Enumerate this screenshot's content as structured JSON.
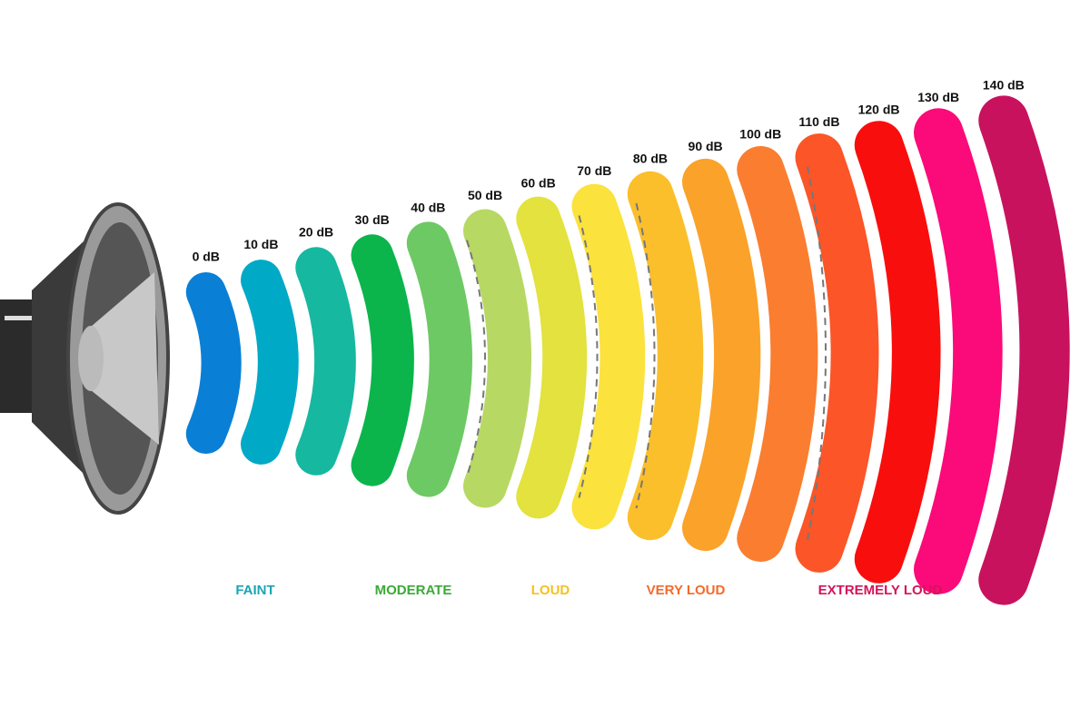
{
  "levels": [
    {
      "label": "0 dB",
      "color": "#0a7fd6"
    },
    {
      "label": "10 dB",
      "color": "#00a9c6"
    },
    {
      "label": "20 dB",
      "color": "#16b8a0"
    },
    {
      "label": "30 dB",
      "color": "#0bb54c"
    },
    {
      "label": "40 dB",
      "color": "#6dc964"
    },
    {
      "label": "50 dB",
      "color": "#b7d863"
    },
    {
      "label": "60 dB",
      "color": "#e3e23e"
    },
    {
      "label": "70 dB",
      "color": "#fbe23c"
    },
    {
      "label": "80 dB",
      "color": "#fbbf2b"
    },
    {
      "label": "90 dB",
      "color": "#fba22a"
    },
    {
      "label": "100 dB",
      "color": "#fb7d30"
    },
    {
      "label": "110 dB",
      "color": "#fb5528"
    },
    {
      "label": "120 dB",
      "color": "#f90e0e"
    },
    {
      "label": "130 dB",
      "color": "#fb0a79"
    },
    {
      "label": "140 dB",
      "color": "#c8125e"
    }
  ],
  "zones": [
    {
      "label": "FAINT",
      "color": "#1aa5b5"
    },
    {
      "label": "MODERATE",
      "color": "#3aaa35"
    },
    {
      "label": "LOUD",
      "color": "#f5c020"
    },
    {
      "label": "VERY LOUD",
      "color": "#f56a2a"
    },
    {
      "label": "EXTREMELY LOUD",
      "color": "#d4145a"
    }
  ]
}
